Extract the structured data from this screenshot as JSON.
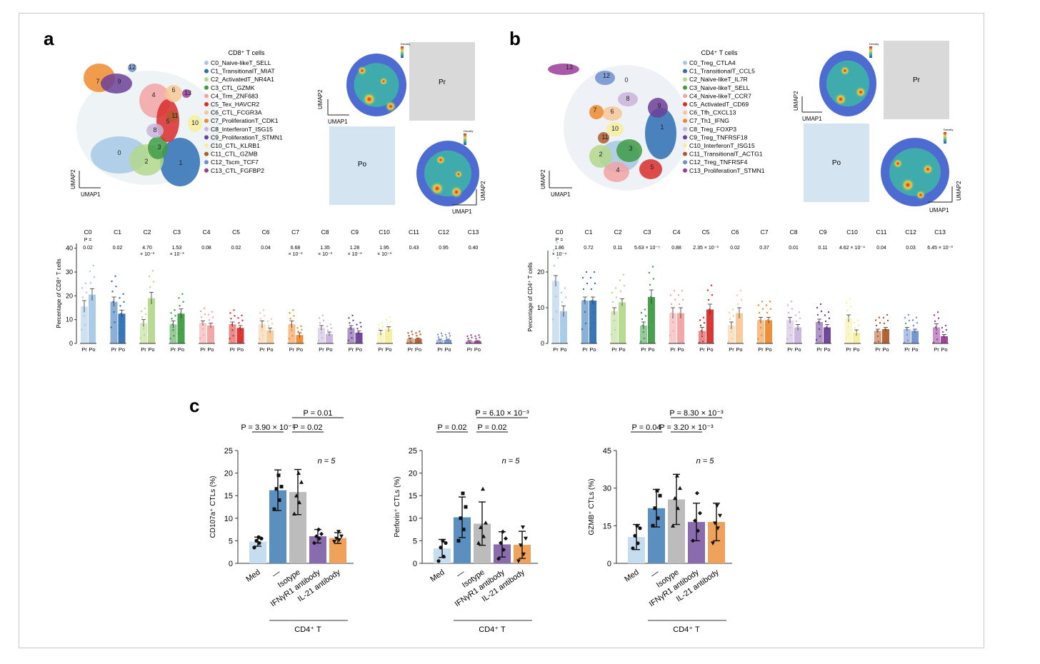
{
  "panels": {
    "a": {
      "letter": "a",
      "legend_title": "CD8⁺ T cells",
      "legend": [
        {
          "label": "C0_Naive-likeT_SELL",
          "color": "#a6c8e6"
        },
        {
          "label": "C1_TransitionalT_MIAT",
          "color": "#2d6fb3"
        },
        {
          "label": "C2_ActivatedT_NR4A1",
          "color": "#b4d88c"
        },
        {
          "label": "C3_CTL_GZMK",
          "color": "#3f9b45"
        },
        {
          "label": "C4_Trm_ZNF683",
          "color": "#f2a3a3"
        },
        {
          "label": "C5_Tex_HAVCR2",
          "color": "#d82d2b"
        },
        {
          "label": "C6_CTL_FCGR3A",
          "color": "#f7c896"
        },
        {
          "label": "C7_ProliferationT_CDK1",
          "color": "#ee8a2e"
        },
        {
          "label": "C8_InterferonT_ISG15",
          "color": "#c9b4dc"
        },
        {
          "label": "C9_ProliferationT_STMN1",
          "color": "#6c3f98"
        },
        {
          "label": "C10_CTL_KLRB1",
          "color": "#f6ee9e"
        },
        {
          "label": "C11_CTL_GZMB",
          "color": "#b25a2c"
        },
        {
          "label": "C12_Tscm_TCF7",
          "color": "#6f90cf"
        },
        {
          "label": "C13_CTL_FGFBP2",
          "color": "#9b3c9a"
        }
      ],
      "umap_clusters": [
        "0",
        "1",
        "2",
        "3",
        "4",
        "5",
        "6",
        "7",
        "8",
        "9",
        "10",
        "11",
        "12",
        "13"
      ],
      "umap_axis_x": "UMAP1",
      "umap_axis_y": "UMAP2",
      "density_title": "Density",
      "pr_label": "Pr",
      "po_label": "Po",
      "bar_ylabel": "Percentage of CD8⁺ T cells",
      "bar_yticks": [
        "0",
        "10",
        "20",
        "30",
        "40"
      ],
      "p_header": "P =",
      "pvalues": [
        [
          "0.02"
        ],
        [
          "0.02"
        ],
        [
          "4.70",
          "× 10⁻³"
        ],
        [
          "1.53",
          "× 10⁻³"
        ],
        [
          "0.08"
        ],
        [
          "0.02"
        ],
        [
          "0.04"
        ],
        [
          "6.68",
          "× 10⁻³"
        ],
        [
          "1.35",
          "× 10⁻³"
        ],
        [
          "1.28",
          "× 10⁻³"
        ],
        [
          "1.95",
          "× 10⁻³"
        ],
        [
          "0.43"
        ],
        [
          "0.95"
        ],
        [
          "0.40"
        ]
      ],
      "bar_groups": [
        "C0",
        "C1",
        "C2",
        "C3",
        "C4",
        "C5",
        "C6",
        "C7",
        "C8",
        "C9",
        "C10",
        "C11",
        "C12",
        "C13"
      ]
    },
    "b": {
      "letter": "b",
      "legend_title": "CD4⁺ T cells",
      "legend": [
        {
          "label": "C0_Treg_CTLA4",
          "color": "#a6c8e6"
        },
        {
          "label": "C1_TransitionalT_CCL5",
          "color": "#2d6fb3"
        },
        {
          "label": "C2_Naive-likeT_IL7R",
          "color": "#b4d88c"
        },
        {
          "label": "C3_Naive-likeT_SELL",
          "color": "#3f9b45"
        },
        {
          "label": "C4_Naive-likeT_CCR7",
          "color": "#f2a3a3"
        },
        {
          "label": "C5_ActivatedT_CD69",
          "color": "#d82d2b"
        },
        {
          "label": "C6_Tfh_CXCL13",
          "color": "#f7c896"
        },
        {
          "label": "C7_Th1_IFNG",
          "color": "#ee8a2e"
        },
        {
          "label": "C8_Treg_FOXP3",
          "color": "#c9b4dc"
        },
        {
          "label": "C9_Treg_TNFRSF18",
          "color": "#6c3f98"
        },
        {
          "label": "C10_InterferonT_ISG15",
          "color": "#f6ee9e"
        },
        {
          "label": "C11_TransitionalT_ACTG1",
          "color": "#b25a2c"
        },
        {
          "label": "C12_Treg_TNFRSF4",
          "color": "#6f90cf"
        },
        {
          "label": "C13_ProliferationT_STMN1",
          "color": "#9b3c9a"
        }
      ],
      "umap_clusters": [
        "0",
        "1",
        "2",
        "3",
        "4",
        "5",
        "6",
        "7",
        "8",
        "9",
        "10",
        "11",
        "12",
        "13"
      ],
      "umap_axis_x": "UMAP1",
      "umap_axis_y": "UMAP2",
      "density_title": "Density",
      "pr_label": "Pr",
      "po_label": "Po",
      "bar_ylabel": "Percentage of CD4⁺ T cells",
      "bar_yticks": [
        "0",
        "10",
        "20"
      ],
      "p_header": "P =",
      "pvalues": [
        [
          "1.86",
          "× 10⁻⁴"
        ],
        [
          "0.72"
        ],
        [
          "0.11"
        ],
        [
          "5.63 × 10⁻⁵"
        ],
        [
          "0.88"
        ],
        [
          "2.35 × 10⁻³"
        ],
        [
          "0.02"
        ],
        [
          "0.37"
        ],
        [
          "0.01"
        ],
        [
          "0.11"
        ],
        [
          "4.62 × 10⁻⁴"
        ],
        [
          "0.04"
        ],
        [
          "0.03"
        ],
        [
          "6.45 × 10⁻³"
        ]
      ],
      "bar_groups": [
        "C0",
        "C1",
        "C2",
        "C3",
        "C4",
        "C5",
        "C6",
        "C7",
        "C8",
        "C9",
        "C10",
        "C11",
        "C12",
        "C13"
      ]
    },
    "c": {
      "letter": "c",
      "n_label": "n = 5",
      "group_label": "CD4⁺ T",
      "categories": [
        "Med",
        "—",
        "Isotype",
        "IFNγR1 antibody",
        "IL-21 antibody"
      ],
      "bar_colors": [
        "#c6dcef",
        "#5b8fc0",
        "#bcbcbc",
        "#8a6cae",
        "#f0a25a"
      ],
      "marker_shapes": [
        "circle",
        "square",
        "triangle",
        "diamond",
        "triangle-down"
      ]
    }
  },
  "chart_data": [
    {
      "type": "bar",
      "title": "CD8⁺ T cells",
      "ylabel": "Percentage of CD8⁺ T cells",
      "ylim": [
        0,
        42
      ],
      "categories": [
        "C0",
        "C1",
        "C2",
        "C3",
        "C4",
        "C5",
        "C6",
        "C7",
        "C8",
        "C9",
        "C10",
        "C11",
        "C12",
        "C13"
      ],
      "series": [
        {
          "name": "Pr",
          "values": [
            15.5,
            17.5,
            8.5,
            8.0,
            8.5,
            8.0,
            8.0,
            8.0,
            6.5,
            6.5,
            4.5,
            2.0,
            1.5,
            1.0
          ]
        },
        {
          "name": "Po",
          "values": [
            20.5,
            12.5,
            19.0,
            12.5,
            7.5,
            6.5,
            5.5,
            3.5,
            4.0,
            4.5,
            6.0,
            2.0,
            1.5,
            1.0
          ]
        }
      ],
      "errors": [
        [
          2.5,
          2.0,
          1.5,
          1.5,
          1.0,
          1.0,
          1.5,
          1.5,
          1.0,
          1.0,
          1.0,
          0.3,
          0.3,
          0.2
        ],
        [
          2.5,
          1.5,
          2.5,
          2.0,
          1.0,
          1.0,
          1.0,
          1.0,
          0.8,
          0.8,
          1.0,
          0.3,
          0.3,
          0.2
        ]
      ],
      "pvalues": [
        "0.02",
        "0.02",
        "4.70 × 10⁻³",
        "1.53 × 10⁻³",
        "0.08",
        "0.02",
        "0.04",
        "6.68 × 10⁻³",
        "1.35 × 10⁻³",
        "1.28 × 10⁻³",
        "1.95 × 10⁻³",
        "0.43",
        "0.95",
        "0.40"
      ]
    },
    {
      "type": "bar",
      "title": "CD4⁺ T cells",
      "ylabel": "Percentage of CD4⁺ T cells",
      "ylim": [
        0,
        26
      ],
      "categories": [
        "C0",
        "C1",
        "C2",
        "C3",
        "C4",
        "C5",
        "C6",
        "C7",
        "C8",
        "C9",
        "C10",
        "C11",
        "C12",
        "C13"
      ],
      "series": [
        {
          "name": "Pr",
          "values": [
            17.5,
            12.0,
            9.0,
            5.0,
            8.5,
            3.5,
            5.0,
            6.5,
            6.5,
            6.0,
            7.0,
            3.5,
            4.0,
            4.5
          ]
        },
        {
          "name": "Po",
          "values": [
            9.0,
            12.0,
            11.5,
            13.0,
            8.5,
            9.5,
            8.5,
            6.5,
            4.5,
            4.5,
            3.0,
            4.0,
            3.5,
            2.0
          ]
        }
      ],
      "errors": [
        [
          1.5,
          1.0,
          1.0,
          1.0,
          1.5,
          1.0,
          1.0,
          0.8,
          0.8,
          0.8,
          1.0,
          0.5,
          0.5,
          1.0
        ],
        [
          1.5,
          1.0,
          1.0,
          2.0,
          1.5,
          1.5,
          1.5,
          0.8,
          0.8,
          0.8,
          0.8,
          0.5,
          0.5,
          0.5
        ]
      ],
      "pvalues": [
        "1.86 × 10⁻⁴",
        "0.72",
        "0.11",
        "5.63 × 10⁻⁵",
        "0.88",
        "2.35 × 10⁻³",
        "0.02",
        "0.37",
        "0.01",
        "0.11",
        "4.62 × 10⁻⁴",
        "0.04",
        "0.03",
        "6.45 × 10⁻³"
      ]
    },
    {
      "type": "bar",
      "ylabel": "CD107a⁺ CTLs (%)",
      "ylim": [
        0,
        25
      ],
      "yticks": [
        0,
        5,
        10,
        15,
        20,
        25
      ],
      "categories": [
        "Med",
        "—",
        "Isotype",
        "IFNγR1 antibody",
        "IL-21 antibody"
      ],
      "values": [
        4.8,
        16.2,
        15.8,
        6.0,
        5.6
      ],
      "errors": [
        1.0,
        4.5,
        5.0,
        1.5,
        1.2
      ],
      "points": [
        [
          3.5,
          4.5,
          5.0,
          5.5,
          5.8
        ],
        [
          12.0,
          14.0,
          16.5,
          17.0,
          19.5
        ],
        [
          11.0,
          13.5,
          15.0,
          18.0,
          20.0
        ],
        [
          4.5,
          5.5,
          6.0,
          6.5,
          7.5
        ],
        [
          4.8,
          5.2,
          5.5,
          6.0,
          7.0
        ]
      ],
      "comparisons": [
        {
          "from": 0,
          "to": 1,
          "label": "P = 3.90 × 10⁻³"
        },
        {
          "from": 2,
          "to": 3,
          "label": "P = 0.02"
        },
        {
          "from": 2,
          "to": 4,
          "label": "P = 0.01"
        }
      ]
    },
    {
      "type": "bar",
      "ylabel": "Perforin⁺ CTLs (%)",
      "ylim": [
        0,
        25
      ],
      "yticks": [
        0,
        5,
        10,
        15,
        20,
        25
      ],
      "categories": [
        "Med",
        "—",
        "Isotype",
        "IFNγR1 antibody",
        "IL-21 antibody"
      ],
      "values": [
        3.3,
        10.2,
        8.8,
        4.2,
        4.1
      ],
      "errors": [
        2.0,
        4.5,
        4.8,
        2.8,
        3.0
      ],
      "points": [
        [
          0.5,
          1.5,
          3.5,
          4.5,
          5.0
        ],
        [
          5.0,
          7.5,
          10.0,
          12.5,
          15.5
        ],
        [
          4.5,
          6.0,
          8.0,
          9.0,
          16.5
        ],
        [
          1.0,
          3.0,
          4.5,
          5.5,
          7.0
        ],
        [
          0.5,
          2.0,
          4.0,
          5.5,
          8.0
        ]
      ],
      "comparisons": [
        {
          "from": 0,
          "to": 1,
          "label": "P = 0.02"
        },
        {
          "from": 2,
          "to": 3,
          "label": "P = 0.02"
        },
        {
          "from": 2,
          "to": 4,
          "label": "P = 6.10 × 10⁻³"
        }
      ]
    },
    {
      "type": "bar",
      "ylabel": "GZMB⁺ CTLs (%)",
      "ylim": [
        0,
        45
      ],
      "yticks": [
        0,
        15,
        30,
        45
      ],
      "categories": [
        "Med",
        "—",
        "Isotype",
        "IFNγR1 antibody",
        "IL-21 antibody"
      ],
      "values": [
        10.5,
        22.0,
        25.5,
        16.5,
        16.5
      ],
      "errors": [
        5.0,
        7.5,
        10.0,
        7.5,
        7.5
      ],
      "points": [
        [
          6.0,
          8.0,
          11.0,
          14.0,
          15.0
        ],
        [
          15.0,
          18.0,
          22.0,
          27.0,
          29.0
        ],
        [
          15.0,
          22.0,
          26.0,
          30.0,
          35.0
        ],
        [
          9.0,
          13.0,
          17.0,
          20.0,
          28.0
        ],
        [
          8.0,
          14.0,
          16.0,
          19.0,
          23.0
        ]
      ],
      "comparisons": [
        {
          "from": 0,
          "to": 1,
          "label": "P = 0.04"
        },
        {
          "from": 2,
          "to": 3,
          "label": "P = 3.20 × 10⁻³"
        },
        {
          "from": 2,
          "to": 4,
          "label": "P = 8.30 × 10⁻³"
        }
      ]
    }
  ]
}
